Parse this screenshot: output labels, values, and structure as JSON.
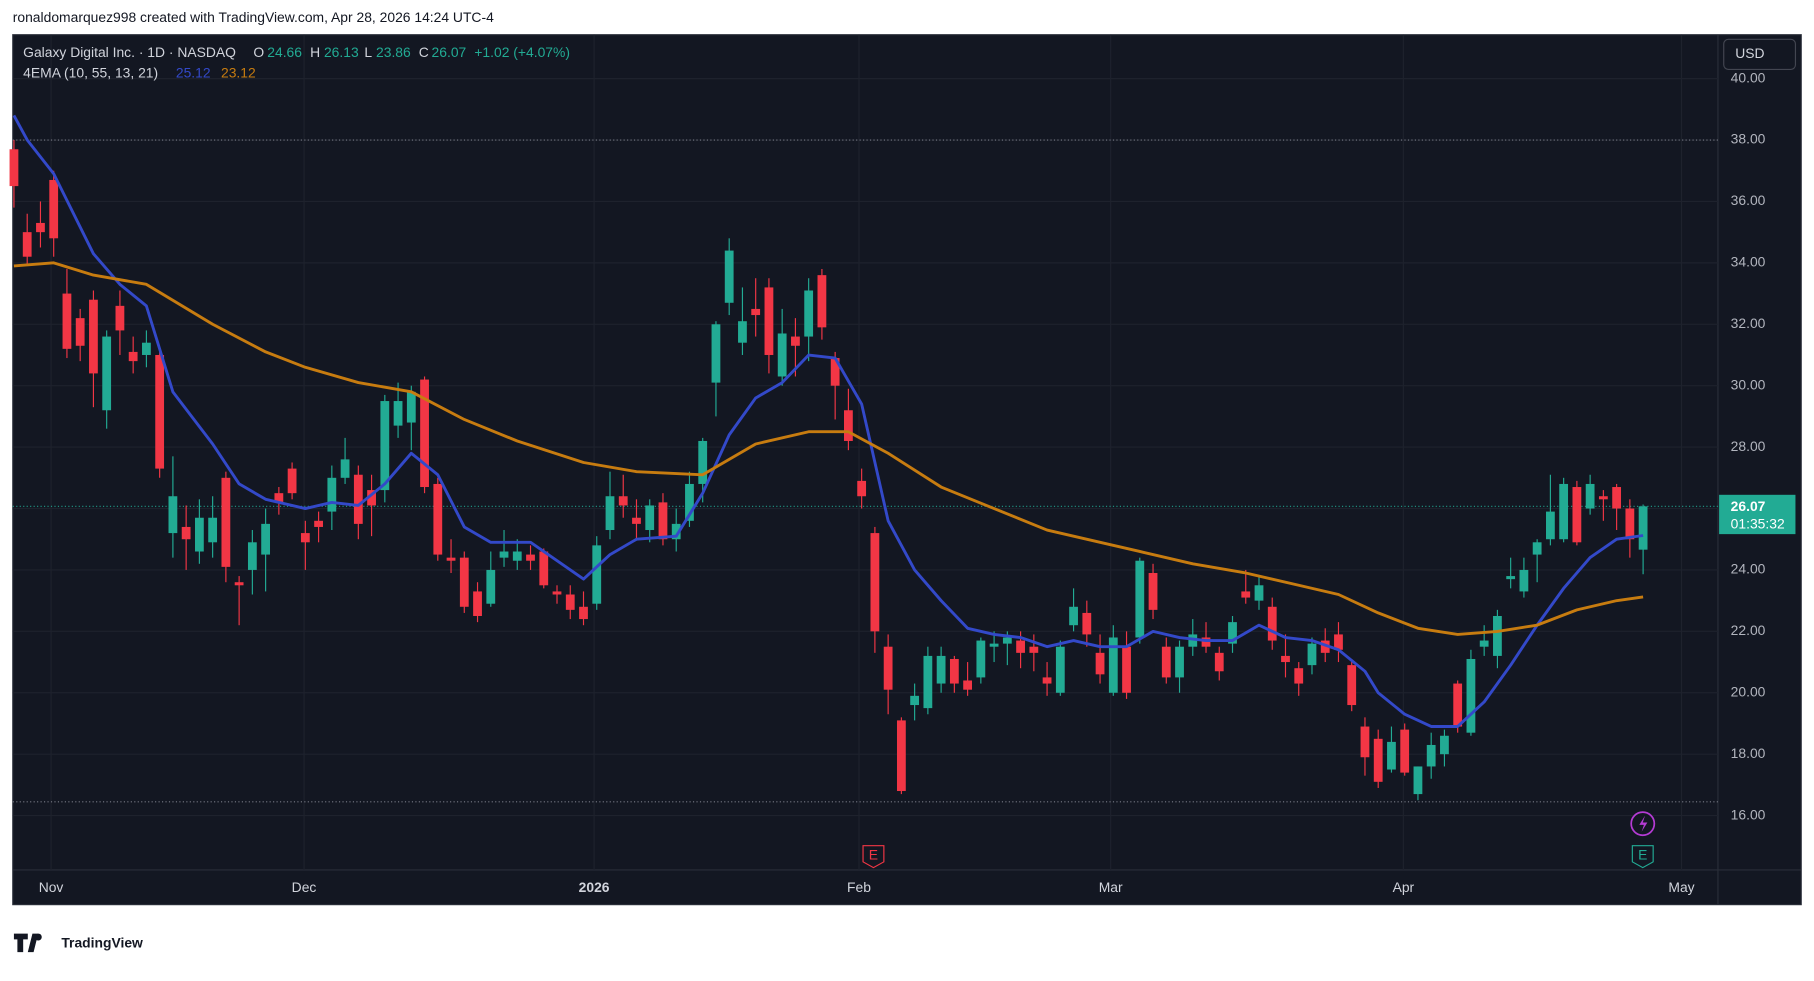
{
  "header": {
    "attribution": "ronaldomarquez998 created with TradingView.com, Apr 28, 2026 14:24 UTC-4"
  },
  "legend": {
    "symbol": "Galaxy Digital Inc. · 1D · NASDAQ",
    "o_label": "O",
    "h_label": "H",
    "l_label": "L",
    "c_label": "C",
    "change": "+1.02 (+4.07%)",
    "indicator": "4EMA (10, 55, 13, 21)"
  },
  "chart_data": {
    "type": "candlestick",
    "currency": "USD",
    "up_color": "#22ab94",
    "down_color": "#f23645",
    "open": [
      37.7,
      35.0,
      35.3,
      36.7,
      33.0,
      32.2,
      32.8,
      29.2,
      32.6,
      31.1,
      31.0,
      31.0,
      25.2,
      25.4,
      24.6,
      24.9,
      27.0,
      23.6,
      24.0,
      24.5,
      26.5,
      27.3,
      25.2,
      25.6,
      25.9,
      27.0,
      27.1,
      26.6,
      26.6,
      28.7,
      28.8,
      30.2,
      26.8,
      24.4,
      24.4,
      23.3,
      22.9,
      24.4,
      24.3,
      24.5,
      24.6,
      23.3,
      23.2,
      22.8,
      22.9,
      25.3,
      26.4,
      25.7,
      25.3,
      26.2,
      25.0,
      25.6,
      26.8,
      30.1,
      32.7,
      31.4,
      32.5,
      33.2,
      30.3,
      31.6,
      31.6,
      33.6,
      30.9,
      29.2,
      26.9,
      25.2,
      21.5,
      19.1,
      19.6,
      19.5,
      20.3,
      21.1,
      20.4,
      20.5,
      21.5,
      21.6,
      21.7,
      21.5,
      20.5,
      20.0,
      22.2,
      22.6,
      21.3,
      20.0,
      21.5,
      21.8,
      23.9,
      21.5,
      20.5,
      21.5,
      21.8,
      21.3,
      21.6,
      23.3,
      23.0,
      22.8,
      21.2,
      20.8,
      20.9,
      21.7,
      21.9,
      20.9,
      18.9,
      18.5,
      17.5,
      18.8,
      16.7,
      17.6,
      18.0,
      20.3,
      18.7,
      21.5,
      21.2,
      23.7,
      23.3,
      24.5,
      25.0,
      25.0,
      26.7,
      26.0,
      26.4,
      26.7,
      26.0,
      24.66
    ],
    "high": [
      38.0,
      35.6,
      36.0,
      37.0,
      33.8,
      32.5,
      33.1,
      31.8,
      33.1,
      31.6,
      31.8,
      31.2,
      27.7,
      26.1,
      26.3,
      26.4,
      27.2,
      23.8,
      25.3,
      26.0,
      26.7,
      27.5,
      25.6,
      25.9,
      27.4,
      28.3,
      27.4,
      27.1,
      29.7,
      30.1,
      30.0,
      30.3,
      27.0,
      25.0,
      24.6,
      23.6,
      24.6,
      25.3,
      25.0,
      24.8,
      24.7,
      23.5,
      23.5,
      23.3,
      25.1,
      27.2,
      27.1,
      26.3,
      26.3,
      26.5,
      26.0,
      27.2,
      28.3,
      32.1,
      34.8,
      33.2,
      33.5,
      33.5,
      32.5,
      32.2,
      33.5,
      33.8,
      31.1,
      29.9,
      27.3,
      25.4,
      21.9,
      19.2,
      20.3,
      21.5,
      21.5,
      21.2,
      21.0,
      21.8,
      22.0,
      22.0,
      22.0,
      21.9,
      21.0,
      21.7,
      23.4,
      23.0,
      21.9,
      22.2,
      22.0,
      24.4,
      24.2,
      21.8,
      21.7,
      22.4,
      22.3,
      21.5,
      22.5,
      24.0,
      23.8,
      23.1,
      21.9,
      21.0,
      21.8,
      22.1,
      22.3,
      21.1,
      19.2,
      18.8,
      18.9,
      19.0,
      17.6,
      18.7,
      18.8,
      20.4,
      21.4,
      22.2,
      22.7,
      24.4,
      24.4,
      25.0,
      27.1,
      27.0,
      26.9,
      27.1,
      26.6,
      26.8,
      26.3,
      26.13
    ],
    "low": [
      35.8,
      33.9,
      34.5,
      34.2,
      30.9,
      30.8,
      29.3,
      28.6,
      31.0,
      30.4,
      30.6,
      27.0,
      24.4,
      24.0,
      24.2,
      24.4,
      23.6,
      22.2,
      23.2,
      23.3,
      25.8,
      26.3,
      24.0,
      24.9,
      25.3,
      26.8,
      25.0,
      25.1,
      26.2,
      28.3,
      27.9,
      26.5,
      24.3,
      23.9,
      22.6,
      22.3,
      22.8,
      24.1,
      24.0,
      24.0,
      23.4,
      22.9,
      22.4,
      22.2,
      22.7,
      25.0,
      25.7,
      25.0,
      24.9,
      24.8,
      24.6,
      25.4,
      26.2,
      29.0,
      32.3,
      31.0,
      31.6,
      30.4,
      30.0,
      30.3,
      30.8,
      31.5,
      28.9,
      27.9,
      26.0,
      21.3,
      19.3,
      16.7,
      19.1,
      19.3,
      20.0,
      20.0,
      19.9,
      20.3,
      21.0,
      20.9,
      20.8,
      20.7,
      19.9,
      19.9,
      22.0,
      21.5,
      20.3,
      19.9,
      19.8,
      21.6,
      22.4,
      20.3,
      20.0,
      21.2,
      21.3,
      20.4,
      21.3,
      22.9,
      22.7,
      21.4,
      20.5,
      19.9,
      20.6,
      21.0,
      21.0,
      19.4,
      17.3,
      16.9,
      17.4,
      17.3,
      16.5,
      17.2,
      17.6,
      18.7,
      18.6,
      21.2,
      20.8,
      23.4,
      23.1,
      23.6,
      24.8,
      24.9,
      24.8,
      25.8,
      25.6,
      25.3,
      24.4,
      23.86
    ],
    "close": [
      36.5,
      34.2,
      35.0,
      34.8,
      31.2,
      31.3,
      30.4,
      31.6,
      31.8,
      30.8,
      31.4,
      27.3,
      26.4,
      25.0,
      25.7,
      25.7,
      24.1,
      23.5,
      24.9,
      25.5,
      26.2,
      26.5,
      24.9,
      25.4,
      27.0,
      27.6,
      25.5,
      26.1,
      29.5,
      29.5,
      29.8,
      26.7,
      24.5,
      24.3,
      22.8,
      22.5,
      24.0,
      24.6,
      24.6,
      24.3,
      23.5,
      23.2,
      22.7,
      22.4,
      24.8,
      26.4,
      26.1,
      25.5,
      26.1,
      25.0,
      25.5,
      26.8,
      28.2,
      32.0,
      34.4,
      32.1,
      32.3,
      31.0,
      31.7,
      31.3,
      33.1,
      31.9,
      30.0,
      28.2,
      26.4,
      22.0,
      20.1,
      16.8,
      19.9,
      21.2,
      21.2,
      20.3,
      20.1,
      21.7,
      21.6,
      21.8,
      21.3,
      21.3,
      20.3,
      21.5,
      22.8,
      21.9,
      20.6,
      21.8,
      20.0,
      24.3,
      22.7,
      20.5,
      21.5,
      21.9,
      21.5,
      20.7,
      22.3,
      23.1,
      23.5,
      21.7,
      21.0,
      20.3,
      21.6,
      21.3,
      21.4,
      19.6,
      17.9,
      17.1,
      18.4,
      17.4,
      17.6,
      18.3,
      18.6,
      18.9,
      21.1,
      21.7,
      22.5,
      23.8,
      24.0,
      24.9,
      25.9,
      26.8,
      24.9,
      26.8,
      26.3,
      26.0,
      25.0,
      26.07
    ],
    "series": [
      {
        "color": "#3349c9",
        "x": [
          0,
          1,
          3,
          6,
          8,
          10,
          12,
          15,
          17,
          19,
          22,
          24,
          26,
          28,
          30,
          32,
          34,
          36,
          39,
          41,
          43,
          45,
          47,
          50,
          52,
          54,
          56,
          58,
          60,
          62,
          64,
          66,
          68,
          70,
          72,
          74,
          76,
          78,
          80,
          82,
          84,
          86,
          88,
          90,
          92,
          94,
          96,
          98,
          100,
          102,
          103,
          105,
          107,
          109,
          111,
          113,
          115,
          117,
          119,
          121,
          123
        ],
        "values": [
          38.8,
          38.0,
          36.9,
          34.3,
          33.3,
          32.6,
          29.8,
          28.1,
          26.8,
          26.3,
          26.0,
          26.2,
          26.1,
          26.8,
          27.8,
          27.1,
          25.4,
          24.9,
          24.9,
          24.3,
          23.7,
          24.5,
          25.0,
          25.1,
          26.5,
          28.4,
          29.6,
          30.1,
          31.0,
          30.9,
          29.4,
          25.6,
          24.0,
          23.0,
          22.1,
          21.9,
          21.8,
          21.5,
          21.7,
          21.5,
          21.5,
          22.0,
          21.8,
          21.7,
          21.7,
          22.2,
          21.8,
          21.7,
          21.4,
          20.7,
          20.0,
          19.3,
          18.9,
          18.9,
          19.7,
          20.9,
          22.2,
          23.4,
          24.4,
          25.0,
          25.12
        ]
      },
      {
        "color": "#c77c10",
        "x": [
          0,
          3,
          6,
          10,
          15,
          19,
          22,
          26,
          30,
          34,
          38,
          43,
          47,
          52,
          56,
          60,
          63,
          66,
          70,
          74,
          78,
          82,
          85,
          89,
          93,
          97,
          100,
          103,
          106,
          109,
          112,
          115,
          118,
          121,
          123
        ],
        "values": [
          33.9,
          34.0,
          33.6,
          33.3,
          32.0,
          31.1,
          30.6,
          30.1,
          29.8,
          28.9,
          28.2,
          27.5,
          27.2,
          27.1,
          28.1,
          28.5,
          28.5,
          27.8,
          26.7,
          26.0,
          25.3,
          24.9,
          24.6,
          24.2,
          23.9,
          23.5,
          23.2,
          22.6,
          22.1,
          21.9,
          22.0,
          22.2,
          22.7,
          23.0,
          23.12
        ]
      }
    ],
    "xlim": [
      -0.09,
      128.65
    ],
    "ylim": [
      14.23,
      41.43
    ],
    "xticks": [
      {
        "value": 2.8,
        "label": "Nov"
      },
      {
        "value": 21.9,
        "label": "Dec"
      },
      {
        "value": 43.8,
        "label": "2026"
      },
      {
        "value": 63.8,
        "label": "Feb"
      },
      {
        "value": 82.8,
        "label": "Mar"
      },
      {
        "value": 104.9,
        "label": "Apr"
      },
      {
        "value": 125.9,
        "label": "May"
      }
    ],
    "yticks": [
      {
        "value": 16,
        "label": "16.00"
      },
      {
        "value": 18,
        "label": "18.00"
      },
      {
        "value": 20,
        "label": "20.00"
      },
      {
        "value": 22,
        "label": "22.00"
      },
      {
        "value": 24,
        "label": "24.00"
      },
      {
        "value": 26,
        "label": "26.00"
      },
      {
        "value": 28,
        "label": "28.00"
      },
      {
        "value": 30,
        "label": "30.00"
      },
      {
        "value": 32,
        "label": "32.00"
      },
      {
        "value": 34,
        "label": "34.00"
      },
      {
        "value": 36,
        "label": "36.00"
      },
      {
        "value": 38,
        "label": "38.00"
      },
      {
        "value": 40,
        "label": "40.00"
      }
    ],
    "price_lines": [
      38.0,
      16.45
    ],
    "grid": true
  },
  "price_tag": {
    "countdown": "01:35:32"
  },
  "events": [
    {
      "label": "E"
    },
    {
      "label": "E"
    }
  ],
  "footer": {
    "brand": "TradingView"
  }
}
